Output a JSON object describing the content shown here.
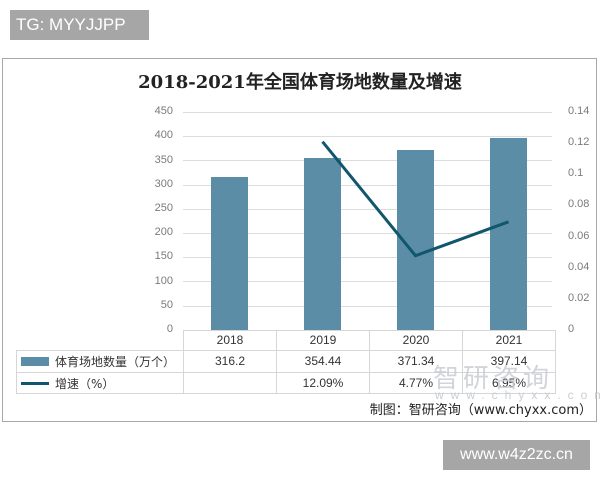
{
  "overlay": {
    "tg_badge": "TG: MYYJJPP",
    "site_badge": "www.w4z2zc.cn"
  },
  "chart": {
    "title": "2018-2021年全国体育场地数量及增速",
    "left_ticks": [
      "450",
      "400",
      "350",
      "300",
      "250",
      "200",
      "150",
      "100",
      "50",
      "0"
    ],
    "right_ticks": [
      "0.14",
      "0.12",
      "0.1",
      "0.08",
      "0.06",
      "0.04",
      "0.02",
      "0"
    ],
    "table": {
      "years": [
        "2018",
        "2019",
        "2020",
        "2021"
      ],
      "rows": [
        {
          "label": "体育场地数量（万个）",
          "values": [
            "316.2",
            "354.44",
            "371.34",
            "397.14"
          ]
        },
        {
          "label": "增速（%）",
          "values": [
            "",
            "12.09%",
            "4.77%",
            "6.95%"
          ]
        }
      ]
    },
    "watermark": {
      "logo": "智研咨询",
      "url": "www.chyxx.com"
    },
    "source": "制图：智研咨询（www.chyxx.com）",
    "colors": {
      "bar": "#5b8da6",
      "line": "#12566e"
    }
  },
  "chart_data": {
    "type": "bar",
    "title": "2018-2021年全国体育场地数量及增速",
    "categories": [
      "2018",
      "2019",
      "2020",
      "2021"
    ],
    "series": [
      {
        "name": "体育场地数量（万个）",
        "type": "bar",
        "axis": "left",
        "values": [
          316.2,
          354.44,
          371.34,
          397.14
        ]
      },
      {
        "name": "增速（%）",
        "type": "line",
        "axis": "right",
        "values": [
          null,
          0.1209,
          0.0477,
          0.0695
        ]
      }
    ],
    "xlabel": "",
    "ylabel": "",
    "ylim": [
      0,
      450
    ],
    "y2lim": [
      0,
      0.14
    ],
    "yticks": [
      0,
      50,
      100,
      150,
      200,
      250,
      300,
      350,
      400,
      450
    ],
    "y2ticks": [
      0,
      0.02,
      0.04,
      0.06,
      0.08,
      0.1,
      0.12,
      0.14
    ],
    "grid": true,
    "legend_position": "data-table"
  }
}
